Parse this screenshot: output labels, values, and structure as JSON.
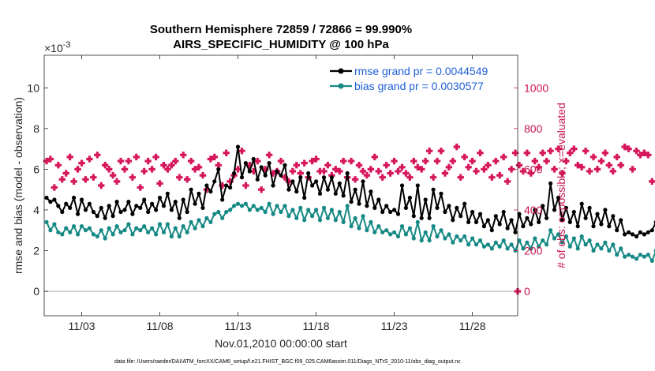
{
  "chart_data": {
    "type": "line",
    "title": "Southern Hemisphere 72859 / 72866 = 99.990%",
    "subtitle": "AIRS_SPECIFIC_HUMIDITY @ 100 hPa",
    "xlabel": "Nov.01,2010 00:00:00 start",
    "ylabel_left": "rmse and bias (model - observation)",
    "ylabel_right": "# of obs: o=possible; ×=evaluated",
    "y_exponent": "×10",
    "y_exponent_power": "-3",
    "ylim_left": [
      -1.2,
      11.6
    ],
    "ylim_right": [
      -120,
      1160
    ],
    "xlim": [
      0.6,
      30.9
    ],
    "x_ticks": [
      {
        "value": 3,
        "label": "11/03"
      },
      {
        "value": 8,
        "label": "11/08"
      },
      {
        "value": 13,
        "label": "11/13"
      },
      {
        "value": 18,
        "label": "11/18"
      },
      {
        "value": 23,
        "label": "11/23"
      },
      {
        "value": 28,
        "label": "11/28"
      }
    ],
    "y_ticks_left": [
      {
        "value": 0,
        "label": "0"
      },
      {
        "value": 2,
        "label": "2"
      },
      {
        "value": 4,
        "label": "4"
      },
      {
        "value": 6,
        "label": "6"
      },
      {
        "value": 8,
        "label": "8"
      },
      {
        "value": 10,
        "label": "10"
      }
    ],
    "y_ticks_right": [
      {
        "value": 0,
        "label": "0"
      },
      {
        "value": 200,
        "label": "200"
      },
      {
        "value": 400,
        "label": "400"
      },
      {
        "value": 600,
        "label": "600"
      },
      {
        "value": 800,
        "label": "800"
      },
      {
        "value": 1000,
        "label": "1000"
      }
    ],
    "x_start": 0.75,
    "x_step": 0.25,
    "series": [
      {
        "name": "rmse grand pr = 0.0044549",
        "color": "#000000",
        "values": [
          4.6,
          4.4,
          4.5,
          4.2,
          3.9,
          4.3,
          4.1,
          4.6,
          3.8,
          4.5,
          4.0,
          4.3,
          3.9,
          3.7,
          4.1,
          3.6,
          4.2,
          3.7,
          4.4,
          3.9,
          4.0,
          4.4,
          3.8,
          4.2,
          4.1,
          4.5,
          3.9,
          4.3,
          4.0,
          4.6,
          4.2,
          4.8,
          4.0,
          4.4,
          3.6,
          4.5,
          3.9,
          5.0,
          4.3,
          4.8,
          4.1,
          5.2,
          4.9,
          5.4,
          6.0,
          4.5,
          5.2,
          5.1,
          5.8,
          7.1,
          5.6,
          6.3,
          5.9,
          6.5,
          5.5,
          6.1,
          5.7,
          6.3,
          5.2,
          5.9,
          5.7,
          6.2,
          5.0,
          5.4,
          4.9,
          5.6,
          4.6,
          5.8,
          5.2,
          5.4,
          4.8,
          5.6,
          5.0,
          5.6,
          4.8,
          5.3,
          4.7,
          5.8,
          4.4,
          5.0,
          4.3,
          5.4,
          4.2,
          4.9,
          4.1,
          4.5,
          3.9,
          4.2,
          3.9,
          4.0,
          3.8,
          5.2,
          4.1,
          4.6,
          3.7,
          5.2,
          3.6,
          4.5,
          3.6,
          5.0,
          4.1,
          4.8,
          3.9,
          4.2,
          3.5,
          4.1,
          3.7,
          4.3,
          3.4,
          3.9,
          3.4,
          3.8,
          3.2,
          3.5,
          3.0,
          3.7,
          3.3,
          3.9,
          3.1,
          3.5,
          2.9,
          3.8,
          3.2,
          3.6,
          3.3,
          4.0,
          3.4,
          4.2,
          3.6,
          5.3,
          4.0,
          4.6,
          3.5,
          4.1,
          3.4,
          3.9,
          3.2,
          4.3,
          3.6,
          4.1,
          3.2,
          3.8,
          3.3,
          4.0,
          3.2,
          3.7,
          3.0,
          3.5,
          2.8,
          2.9,
          2.8,
          2.7,
          2.9,
          2.8,
          2.9,
          3.0,
          3.4,
          3.9,
          3.5,
          4.9,
          4.8
        ]
      },
      {
        "name": "bias grand pr = 0.0030577",
        "color": "#168985",
        "values": [
          3.4,
          3.0,
          3.3,
          2.9,
          2.8,
          3.1,
          2.9,
          3.2,
          2.8,
          3.2,
          3.0,
          3.1,
          2.8,
          2.7,
          3.0,
          2.6,
          3.1,
          2.8,
          3.2,
          2.9,
          3.0,
          3.3,
          2.8,
          3.1,
          3.0,
          3.2,
          2.9,
          3.1,
          2.8,
          3.3,
          2.9,
          3.3,
          2.7,
          3.1,
          2.7,
          3.2,
          2.9,
          3.4,
          3.1,
          3.5,
          3.2,
          3.6,
          3.4,
          3.8,
          3.9,
          3.6,
          3.9,
          4.0,
          4.2,
          4.3,
          4.2,
          4.3,
          4.0,
          4.2,
          4.0,
          4.1,
          3.9,
          4.3,
          3.8,
          4.2,
          3.9,
          4.2,
          3.7,
          4.0,
          3.6,
          4.1,
          3.5,
          4.0,
          3.7,
          4.0,
          3.5,
          4.1,
          3.6,
          4.0,
          3.5,
          3.9,
          3.4,
          4.2,
          3.2,
          3.6,
          3.1,
          3.7,
          3.0,
          3.4,
          2.9,
          3.2,
          2.9,
          3.0,
          2.8,
          2.9,
          2.7,
          3.2,
          2.8,
          3.1,
          2.6,
          3.4,
          2.5,
          2.9,
          2.5,
          3.2,
          2.7,
          3.0,
          2.6,
          2.8,
          2.4,
          2.7,
          2.5,
          2.7,
          2.3,
          2.6,
          2.3,
          2.5,
          2.2,
          2.3,
          2.1,
          2.4,
          2.2,
          2.5,
          2.1,
          2.3,
          2.0,
          2.5,
          2.1,
          2.4,
          2.1,
          2.6,
          2.2,
          2.5,
          2.3,
          3.0,
          2.6,
          2.8,
          2.4,
          2.7,
          2.2,
          2.6,
          2.1,
          2.7,
          2.3,
          2.5,
          2.0,
          2.3,
          2.1,
          2.4,
          2.0,
          2.3,
          1.8,
          2.1,
          1.7,
          1.8,
          1.7,
          1.6,
          1.8,
          1.7,
          1.8,
          1.5,
          2.0,
          2.2,
          2.1,
          2.6,
          2.7
        ]
      }
    ],
    "obs_series": {
      "name": "# of obs evaluated",
      "color": "#d6175c",
      "values": [
        640,
        650,
        510,
        620,
        550,
        580,
        660,
        540,
        600,
        630,
        550,
        650,
        560,
        670,
        520,
        620,
        600,
        570,
        540,
        640,
        600,
        640,
        560,
        660,
        510,
        590,
        640,
        600,
        660,
        530,
        620,
        600,
        620,
        640,
        560,
        670,
        550,
        640,
        600,
        610,
        570,
        500,
        650,
        660,
        620,
        520,
        680,
        540,
        570,
        600,
        690,
        520,
        620,
        590,
        640,
        500,
        600,
        670,
        580,
        590,
        640,
        560,
        540,
        590,
        620,
        580,
        630,
        560,
        640,
        650,
        590,
        590,
        620,
        570,
        600,
        590,
        640,
        560,
        640,
        550,
        620,
        590,
        570,
        600,
        660,
        590,
        560,
        620,
        580,
        640,
        590,
        610,
        580,
        560,
        640,
        610,
        600,
        640,
        690,
        560,
        640,
        690,
        580,
        610,
        640,
        710,
        560,
        660,
        610,
        640,
        590,
        680,
        600,
        620,
        560,
        640,
        570,
        660,
        540,
        600,
        680,
        620,
        590,
        680,
        580,
        640,
        610,
        680,
        640,
        690,
        600,
        700,
        580,
        640,
        680,
        700,
        620,
        610,
        690,
        590,
        660,
        600,
        640,
        680,
        620,
        590,
        660,
        620,
        710,
        700,
        600,
        690,
        670,
        680,
        670,
        540
      ]
    },
    "zero_point": {
      "x": 30.9,
      "value": 0
    },
    "legend_position": "top-right",
    "footnote": "data file: /Users/raeder/DAI/ATM_forcXX/CAM6_setup/f.e21.FHIST_BGC.f09_025.CAM6assim.011/Diags_NTrS_2010-11/obs_diag_output.nc"
  }
}
